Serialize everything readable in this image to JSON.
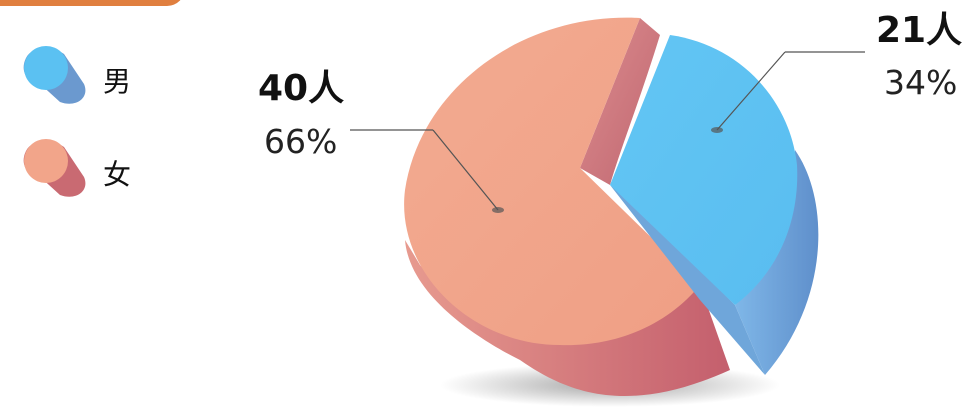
{
  "chart_data": {
    "type": "pie",
    "series": [
      {
        "name": "男",
        "value": 21,
        "count_label": "21人",
        "percent_label": "34%",
        "color": "#5bc1f2",
        "side_color": "#6b99cf"
      },
      {
        "name": "女",
        "value": 40,
        "count_label": "40人",
        "percent_label": "66%",
        "color": "#f2a58a",
        "side_color": "#c96a72"
      }
    ],
    "legend_position": "top-left",
    "accent_color": "#e07f3f"
  }
}
